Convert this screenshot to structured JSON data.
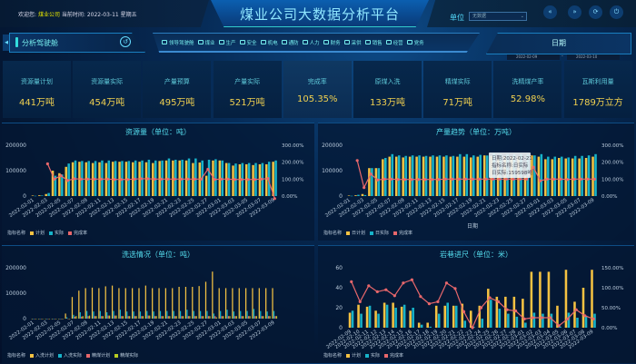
{
  "header": {
    "welcome_prefix": "欢迎您:",
    "company": "煤业公司",
    "time_label": "当前时间:",
    "time_value": "2022-03-11 星期五",
    "title": "煤业公司大数据分析平台",
    "unit_label": "单位",
    "unit_value": "无数据",
    "buttons": [
      {
        "icon": "chevron-double-left-icon",
        "glyph": "«"
      },
      {
        "icon": "chevron-double-right-icon",
        "glyph": "»"
      },
      {
        "icon": "refresh-icon",
        "glyph": "⟳"
      },
      {
        "icon": "power-icon",
        "glyph": "⏻"
      }
    ]
  },
  "pane": {
    "title": "分析驾驶舱",
    "collapse_glyph": "◀",
    "back_glyph": "↺"
  },
  "nav": [
    "领导驾驶舱",
    "煤业",
    "生产",
    "安全",
    "机电",
    "通防",
    "人力",
    "财务",
    "采供",
    "销售",
    "经营",
    "党务"
  ],
  "date": {
    "title": "日期",
    "start": "2022-02-09",
    "end": "2022-03-10",
    "sep": "-"
  },
  "kpis": [
    {
      "label": "资源量计划",
      "value": "441万吨"
    },
    {
      "label": "资源量实际",
      "value": "454万吨"
    },
    {
      "label": "产量预算",
      "value": "495万吨"
    },
    {
      "label": "产量实际",
      "value": "521万吨"
    },
    {
      "label": "完成率",
      "value": "105.35%"
    },
    {
      "label": "原煤入洗",
      "value": "133万吨"
    },
    {
      "label": "精煤实际",
      "value": "71万吨"
    },
    {
      "label": "洗精煤产率",
      "value": "52.98%"
    },
    {
      "label": "瓦斯利用量",
      "value": "1789万立方"
    }
  ],
  "colors": {
    "plan": "#f5c242",
    "actual": "#17b3c9",
    "rate": "#e8676b",
    "clean_actual": "#b8cc22"
  },
  "chart_data": [
    {
      "id": "c1",
      "type": "bar+line",
      "title": "资源量（单位：吨）",
      "legend_title": "指标名称",
      "ylim": [
        0,
        200000
      ],
      "yticks": [
        0,
        100000,
        200000
      ],
      "y2lim": [
        0,
        300
      ],
      "y2ticks": [
        "0.00%",
        "100.00%",
        "200.00%",
        "300.00%"
      ],
      "x": [
        "2022-02-01",
        "2022-02-02",
        "2022-02-03",
        "2022-02-04",
        "2022-02-05",
        "2022-02-06",
        "2022-02-07",
        "2022-02-08",
        "2022-02-09",
        "2022-02-10",
        "2022-02-11",
        "2022-02-12",
        "2022-02-13",
        "2022-02-14",
        "2022-02-15",
        "2022-02-16",
        "2022-02-17",
        "2022-02-18",
        "2022-02-19",
        "2022-02-20",
        "2022-02-21",
        "2022-02-22",
        "2022-02-23",
        "2022-02-24",
        "2022-02-25",
        "2022-02-26",
        "2022-02-27",
        "2022-02-28",
        "2022-03-01",
        "2022-03-02",
        "2022-03-03",
        "2022-03-04",
        "2022-03-05",
        "2022-03-06",
        "2022-03-07",
        "2022-03-08",
        "2022-03-09"
      ],
      "series": [
        {
          "name": "计划",
          "color": "#f5c242",
          "values": [
            2000,
            3000,
            8000,
            100000,
            90000,
            115000,
            133000,
            135000,
            133000,
            130000,
            133000,
            130000,
            135000,
            135000,
            135000,
            133000,
            135000,
            133000,
            130000,
            138000,
            140000,
            140000,
            140000,
            140000,
            130000,
            132000,
            80000,
            140000,
            140000,
            130000,
            120000,
            125000,
            125000,
            122000,
            125000,
            125000,
            135000
          ]
        },
        {
          "name": "实际",
          "color": "#17b3c9",
          "values": [
            1000,
            2000,
            12000,
            80000,
            85000,
            128000,
            140000,
            138000,
            138000,
            138000,
            140000,
            140000,
            138000,
            138000,
            138000,
            140000,
            140000,
            143000,
            140000,
            140000,
            148000,
            143000,
            143000,
            148000,
            148000,
            140000,
            143000,
            145000,
            140000,
            130000,
            128000,
            130000,
            130000,
            130000,
            130000,
            135000,
            140000
          ]
        },
        {
          "name": "完成率",
          "color": "#e8676b",
          "line": true,
          "values": [
            null,
            null,
            190,
            100,
            120,
            92,
            102,
            100,
            100,
            100,
            100,
            100,
            98,
            98,
            98,
            100,
            102,
            102,
            100,
            100,
            100,
            100,
            100,
            100,
            100,
            100,
            158,
            98,
            100,
            100,
            98,
            98,
            98,
            98,
            100,
            103,
            -15
          ]
        }
      ]
    },
    {
      "id": "c2",
      "type": "bar+line",
      "title": "产量趋势（单位：万吨）",
      "xlabel": "日期",
      "legend_title": "指标名称",
      "ylim": [
        0,
        200000
      ],
      "yticks": [
        0,
        100000,
        200000
      ],
      "y2lim": [
        0,
        300
      ],
      "y2ticks": [
        "0.00%",
        "100.00%",
        "200.00%",
        "300.00%"
      ],
      "tooltip": [
        "日期:2022-02-21",
        "指标名称:日实际",
        "日实际:159598吨"
      ],
      "x": [
        "2022-02-01",
        "2022-02-02",
        "2022-02-03",
        "2022-02-04",
        "2022-02-05",
        "2022-02-06",
        "2022-02-07",
        "2022-02-08",
        "2022-02-09",
        "2022-02-10",
        "2022-02-11",
        "2022-02-12",
        "2022-02-13",
        "2022-02-14",
        "2022-02-15",
        "2022-02-16",
        "2022-02-17",
        "2022-02-18",
        "2022-02-19",
        "2022-02-20",
        "2022-02-21",
        "2022-02-22",
        "2022-02-23",
        "2022-02-24",
        "2022-02-25",
        "2022-02-26",
        "2022-02-27",
        "2022-02-28",
        "2022-03-01",
        "2022-03-02",
        "2022-03-03",
        "2022-03-04",
        "2022-03-05",
        "2022-03-06",
        "2022-03-07",
        "2022-03-08",
        "2022-03-09"
      ],
      "series": [
        {
          "name": "日计划",
          "color": "#f5c242",
          "values": [
            2000,
            3000,
            8000,
            110000,
            110000,
            145000,
            155000,
            155000,
            152000,
            155000,
            155000,
            155000,
            155000,
            155000,
            155000,
            155000,
            155000,
            155000,
            152000,
            155000,
            160000,
            158000,
            155000,
            155000,
            155000,
            155000,
            80000,
            160000,
            155000,
            145000,
            145000,
            150000,
            148000,
            148000,
            148000,
            150000,
            155000
          ]
        },
        {
          "name": "日实际",
          "color": "#17b3c9",
          "values": [
            1000,
            5000,
            4000,
            110000,
            110000,
            150000,
            165000,
            160000,
            158000,
            160000,
            160000,
            158000,
            160000,
            160000,
            160000,
            158000,
            165000,
            165000,
            160000,
            162000,
            159598,
            168000,
            165000,
            165000,
            165000,
            165000,
            165000,
            160000,
            165000,
            155000,
            155000,
            155000,
            152000,
            158000,
            158000,
            160000,
            165000
          ]
        },
        {
          "name": "完成率",
          "color": "#e8676b",
          "line": true,
          "values": [
            null,
            210,
            50,
            130,
            95,
            100,
            100,
            98,
            98,
            98,
            98,
            98,
            98,
            98,
            100,
            100,
            100,
            100,
            100,
            100,
            100,
            100,
            100,
            100,
            100,
            100,
            100,
            170,
            90,
            100,
            100,
            100,
            98,
            100,
            100,
            100,
            100
          ]
        }
      ]
    },
    {
      "id": "c3",
      "type": "bar",
      "title": "洗选情况（单位：吨）",
      "legend_title": "指标名称",
      "ylim": [
        0,
        200000
      ],
      "yticks": [
        0,
        100000,
        200000
      ],
      "x": [
        "2022-02-01",
        "2022-02-02",
        "2022-02-03",
        "2022-02-04",
        "2022-02-05",
        "2022-02-06",
        "2022-02-07",
        "2022-02-08",
        "2022-02-09",
        "2022-02-10",
        "2022-02-11",
        "2022-02-12",
        "2022-02-13",
        "2022-02-14",
        "2022-02-15",
        "2022-02-16",
        "2022-02-17",
        "2022-02-18",
        "2022-02-19",
        "2022-02-20",
        "2022-02-21",
        "2022-02-22",
        "2022-02-23",
        "2022-02-24",
        "2022-02-25",
        "2022-02-26",
        "2022-02-27",
        "2022-02-28",
        "2022-03-01",
        "2022-03-02",
        "2022-03-03",
        "2022-03-04",
        "2022-03-05",
        "2022-03-06",
        "2022-03-07",
        "2022-03-08",
        "2022-03-09"
      ],
      "series": [
        {
          "name": "入洗计划",
          "color": "#f5c242",
          "values": [
            0,
            0,
            0,
            0,
            0,
            20000,
            85000,
            110000,
            120000,
            122000,
            120000,
            127000,
            130000,
            120000,
            120000,
            120000,
            120000,
            130000,
            120000,
            120000,
            120000,
            120000,
            125000,
            125000,
            125000,
            128000,
            145000,
            185000,
            120000,
            120000,
            120000,
            120000,
            120000,
            120000,
            120000,
            120000,
            120000
          ]
        },
        {
          "name": "入洗实际",
          "color": "#17b3c9",
          "values": [
            0,
            0,
            0,
            0,
            0,
            5000,
            15000,
            25000,
            30000,
            28000,
            30000,
            25000,
            30000,
            35000,
            28000,
            28000,
            28000,
            30000,
            28000,
            30000,
            30000,
            30000,
            30000,
            35000,
            30000,
            30000,
            30000,
            20000,
            30000,
            35000,
            28000,
            30000,
            30000,
            38000,
            30000,
            28000,
            30000
          ]
        },
        {
          "name": "精煤计划",
          "color": "#e8676b",
          "values": [
            0,
            0,
            0,
            0,
            0,
            0,
            8000,
            8000,
            10000,
            10000,
            10000,
            12000,
            12000,
            10000,
            10000,
            10000,
            10000,
            12000,
            10000,
            10000,
            10000,
            10000,
            10000,
            10000,
            10000,
            10000,
            10000,
            10000,
            10000,
            10000,
            10000,
            10000,
            10000,
            10000,
            10000,
            10000,
            10000
          ]
        },
        {
          "name": "精煤实际",
          "color": "#b8cc22",
          "values": [
            0,
            0,
            0,
            0,
            0,
            0,
            10000,
            10000,
            12000,
            10000,
            10000,
            12000,
            12000,
            10000,
            10000,
            10000,
            10000,
            12000,
            10000,
            10000,
            10000,
            10000,
            10000,
            10000,
            10000,
            10000,
            10000,
            5000,
            10000,
            10000,
            10000,
            10000,
            10000,
            10000,
            10000,
            10000,
            10000
          ]
        }
      ]
    },
    {
      "id": "c4",
      "type": "bar+line",
      "title": "岩巷进尺（单位：米）",
      "legend_title": "指标名称",
      "ylim": [
        0,
        60
      ],
      "yticks": [
        0,
        20,
        40,
        60
      ],
      "y2lim": [
        0,
        150
      ],
      "y2ticks": [
        "0.00%",
        "50.00%",
        "100.00%",
        "150.00%"
      ],
      "smooth": true,
      "x": [
        "2022-02-09",
        "2022-02-10",
        "2022-02-11",
        "2022-02-12",
        "2022-02-13",
        "2022-02-14",
        "2022-02-15",
        "2022-02-16",
        "2022-02-17",
        "2022-02-18",
        "2022-02-19",
        "2022-02-20",
        "2022-02-21",
        "2022-02-22",
        "2022-02-23",
        "2022-02-24",
        "2022-02-25",
        "2022-02-26",
        "2022-02-27",
        "2022-02-28",
        "2022-03-01",
        "2022-03-02",
        "2022-03-03",
        "2022-03-04",
        "2022-03-05",
        "2022-03-06",
        "2022-03-07",
        "2022-03-08",
        "2022-03-09"
      ],
      "series": [
        {
          "name": "计划",
          "color": "#f5c242",
          "values": [
            15,
            23,
            21,
            17,
            25,
            25,
            21,
            17,
            5,
            5,
            22,
            22,
            22,
            24,
            17,
            22,
            39,
            31,
            31,
            31,
            29,
            56,
            56,
            56,
            22,
            58,
            26,
            40,
            58
          ]
        },
        {
          "name": "实际",
          "color": "#17b3c9",
          "values": [
            17,
            14,
            22,
            14,
            23,
            20,
            23,
            20,
            3,
            1,
            14,
            25,
            22,
            7,
            1,
            9,
            28,
            19,
            14,
            11,
            5,
            15,
            14,
            14,
            1,
            15,
            10,
            12,
            14
          ]
        },
        {
          "name": "完成率",
          "color": "#e8676b",
          "line": true,
          "values": [
            115,
            65,
            105,
            90,
            95,
            80,
            112,
            120,
            78,
            60,
            65,
            112,
            98,
            40,
            0,
            50,
            75,
            65,
            45,
            42,
            22,
            25,
            25,
            25,
            5,
            22,
            45,
            30,
            22
          ]
        }
      ]
    }
  ]
}
